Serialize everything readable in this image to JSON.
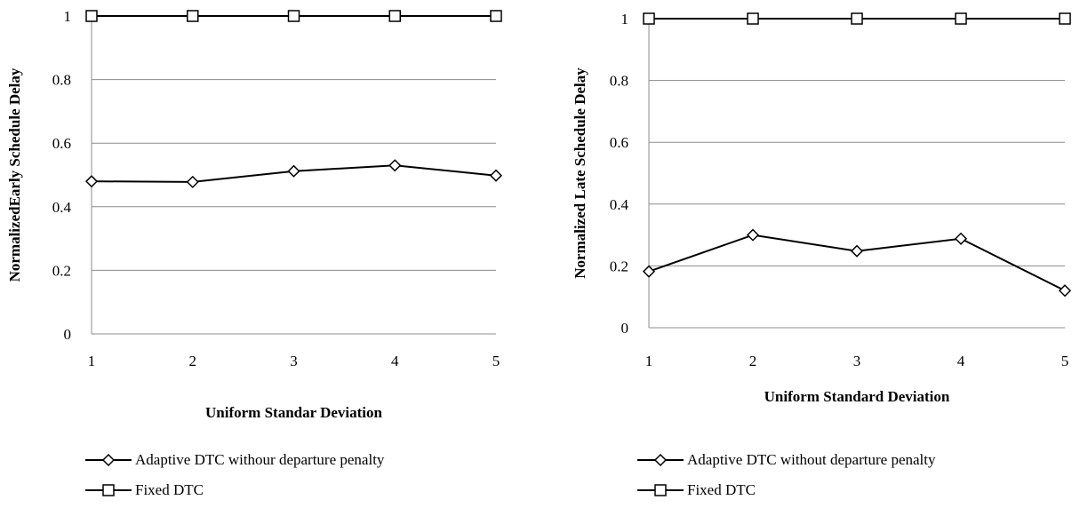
{
  "chart_data": [
    {
      "type": "line",
      "x": [
        1,
        2,
        3,
        4,
        5
      ],
      "xlabel": "Uniform Standar Deviation",
      "ylabel": "NormalizedEarly Schedule Delay",
      "ylim": [
        0,
        1
      ],
      "y_ticks": [
        "0",
        "0.2",
        "0.4",
        "0.6",
        "0.8",
        "1"
      ],
      "x_ticks": [
        "1",
        "2",
        "3",
        "4",
        "5"
      ],
      "grid": true,
      "legend_position": "bottom",
      "series": [
        {
          "name": "Adaptive DTC withour departure penalty",
          "marker": "diamond",
          "values": [
            0.48,
            0.478,
            0.512,
            0.53,
            0.498
          ]
        },
        {
          "name": "Fixed DTC",
          "marker": "square",
          "values": [
            1,
            1,
            1,
            1,
            1
          ]
        }
      ]
    },
    {
      "type": "line",
      "x": [
        1,
        2,
        3,
        4,
        5
      ],
      "xlabel": "Uniform Standard Deviation",
      "ylabel": "Normalized Late Schedule Delay",
      "ylim": [
        0,
        1
      ],
      "y_ticks": [
        "0",
        "0.2",
        "0.4",
        "0.6",
        "0.8",
        "1"
      ],
      "x_ticks": [
        "1",
        "2",
        "3",
        "4",
        "5"
      ],
      "grid": true,
      "legend_position": "bottom",
      "series": [
        {
          "name": "Adaptive DTC without departure penalty",
          "marker": "diamond",
          "values": [
            0.182,
            0.3,
            0.248,
            0.288,
            0.12
          ]
        },
        {
          "name": "Fixed DTC",
          "marker": "square",
          "values": [
            1,
            1,
            1,
            1,
            1
          ]
        }
      ]
    }
  ],
  "colors": {
    "line": "#000000",
    "grid": "#8c8c8c"
  }
}
